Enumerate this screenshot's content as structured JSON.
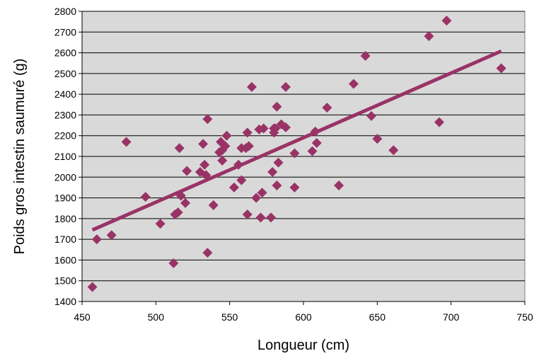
{
  "chart_data": {
    "type": "scatter",
    "title": "",
    "xlabel": "Longueur (cm)",
    "ylabel": "Poids gros intestin saumuré (g)",
    "xlim": [
      450,
      750
    ],
    "ylim": [
      1400,
      2800
    ],
    "xticks": [
      450,
      500,
      550,
      600,
      650,
      700,
      750
    ],
    "yticks": [
      1400,
      1500,
      1600,
      1700,
      1800,
      1900,
      2000,
      2100,
      2200,
      2300,
      2400,
      2500,
      2600,
      2700,
      2800
    ],
    "grid": "horizontal",
    "legend": "none",
    "colors": {
      "plot_background": "#d9d9d9",
      "marker": "#993366",
      "trendline": "#993366",
      "gridline": "#000000"
    },
    "series": [
      {
        "marker": "diamond",
        "points": [
          [
            457,
            1470
          ],
          [
            460,
            1700
          ],
          [
            470,
            1720
          ],
          [
            480,
            2170
          ],
          [
            493,
            1905
          ],
          [
            503,
            1775
          ],
          [
            512,
            1585
          ],
          [
            513,
            1820
          ],
          [
            515,
            1830
          ],
          [
            516,
            2140
          ],
          [
            517,
            1910
          ],
          [
            520,
            1875
          ],
          [
            521,
            2030
          ],
          [
            530,
            2025
          ],
          [
            532,
            2160
          ],
          [
            533,
            2060
          ],
          [
            534,
            2010
          ],
          [
            535,
            1635
          ],
          [
            535,
            2280
          ],
          [
            539,
            1865
          ],
          [
            543,
            2120
          ],
          [
            544,
            2170
          ],
          [
            545,
            2130
          ],
          [
            545,
            2080
          ],
          [
            547,
            2150
          ],
          [
            548,
            2200
          ],
          [
            553,
            1950
          ],
          [
            556,
            2060
          ],
          [
            558,
            1985
          ],
          [
            558,
            2140
          ],
          [
            561,
            2140
          ],
          [
            562,
            2215
          ],
          [
            562,
            1820
          ],
          [
            563,
            2150
          ],
          [
            565,
            2435
          ],
          [
            568,
            1900
          ],
          [
            570,
            2230
          ],
          [
            571,
            1805
          ],
          [
            572,
            1925
          ],
          [
            573,
            2235
          ],
          [
            578,
            1805
          ],
          [
            579,
            2025
          ],
          [
            580,
            2215
          ],
          [
            580,
            2235
          ],
          [
            581,
            2235
          ],
          [
            582,
            2340
          ],
          [
            582,
            1960
          ],
          [
            583,
            2070
          ],
          [
            585,
            2255
          ],
          [
            588,
            2240
          ],
          [
            588,
            2435
          ],
          [
            594,
            2115
          ],
          [
            594,
            1950
          ],
          [
            606,
            2125
          ],
          [
            608,
            2220
          ],
          [
            609,
            2165
          ],
          [
            616,
            2335
          ],
          [
            624,
            1960
          ],
          [
            634,
            2450
          ],
          [
            642,
            2585
          ],
          [
            646,
            2295
          ],
          [
            650,
            2185
          ],
          [
            661,
            2130
          ],
          [
            685,
            2680
          ],
          [
            692,
            2265
          ],
          [
            697,
            2755
          ],
          [
            734,
            2525
          ]
        ]
      }
    ],
    "trendline": {
      "type": "linear",
      "x": [
        457,
        734
      ],
      "y": [
        1745,
        2608
      ]
    }
  }
}
